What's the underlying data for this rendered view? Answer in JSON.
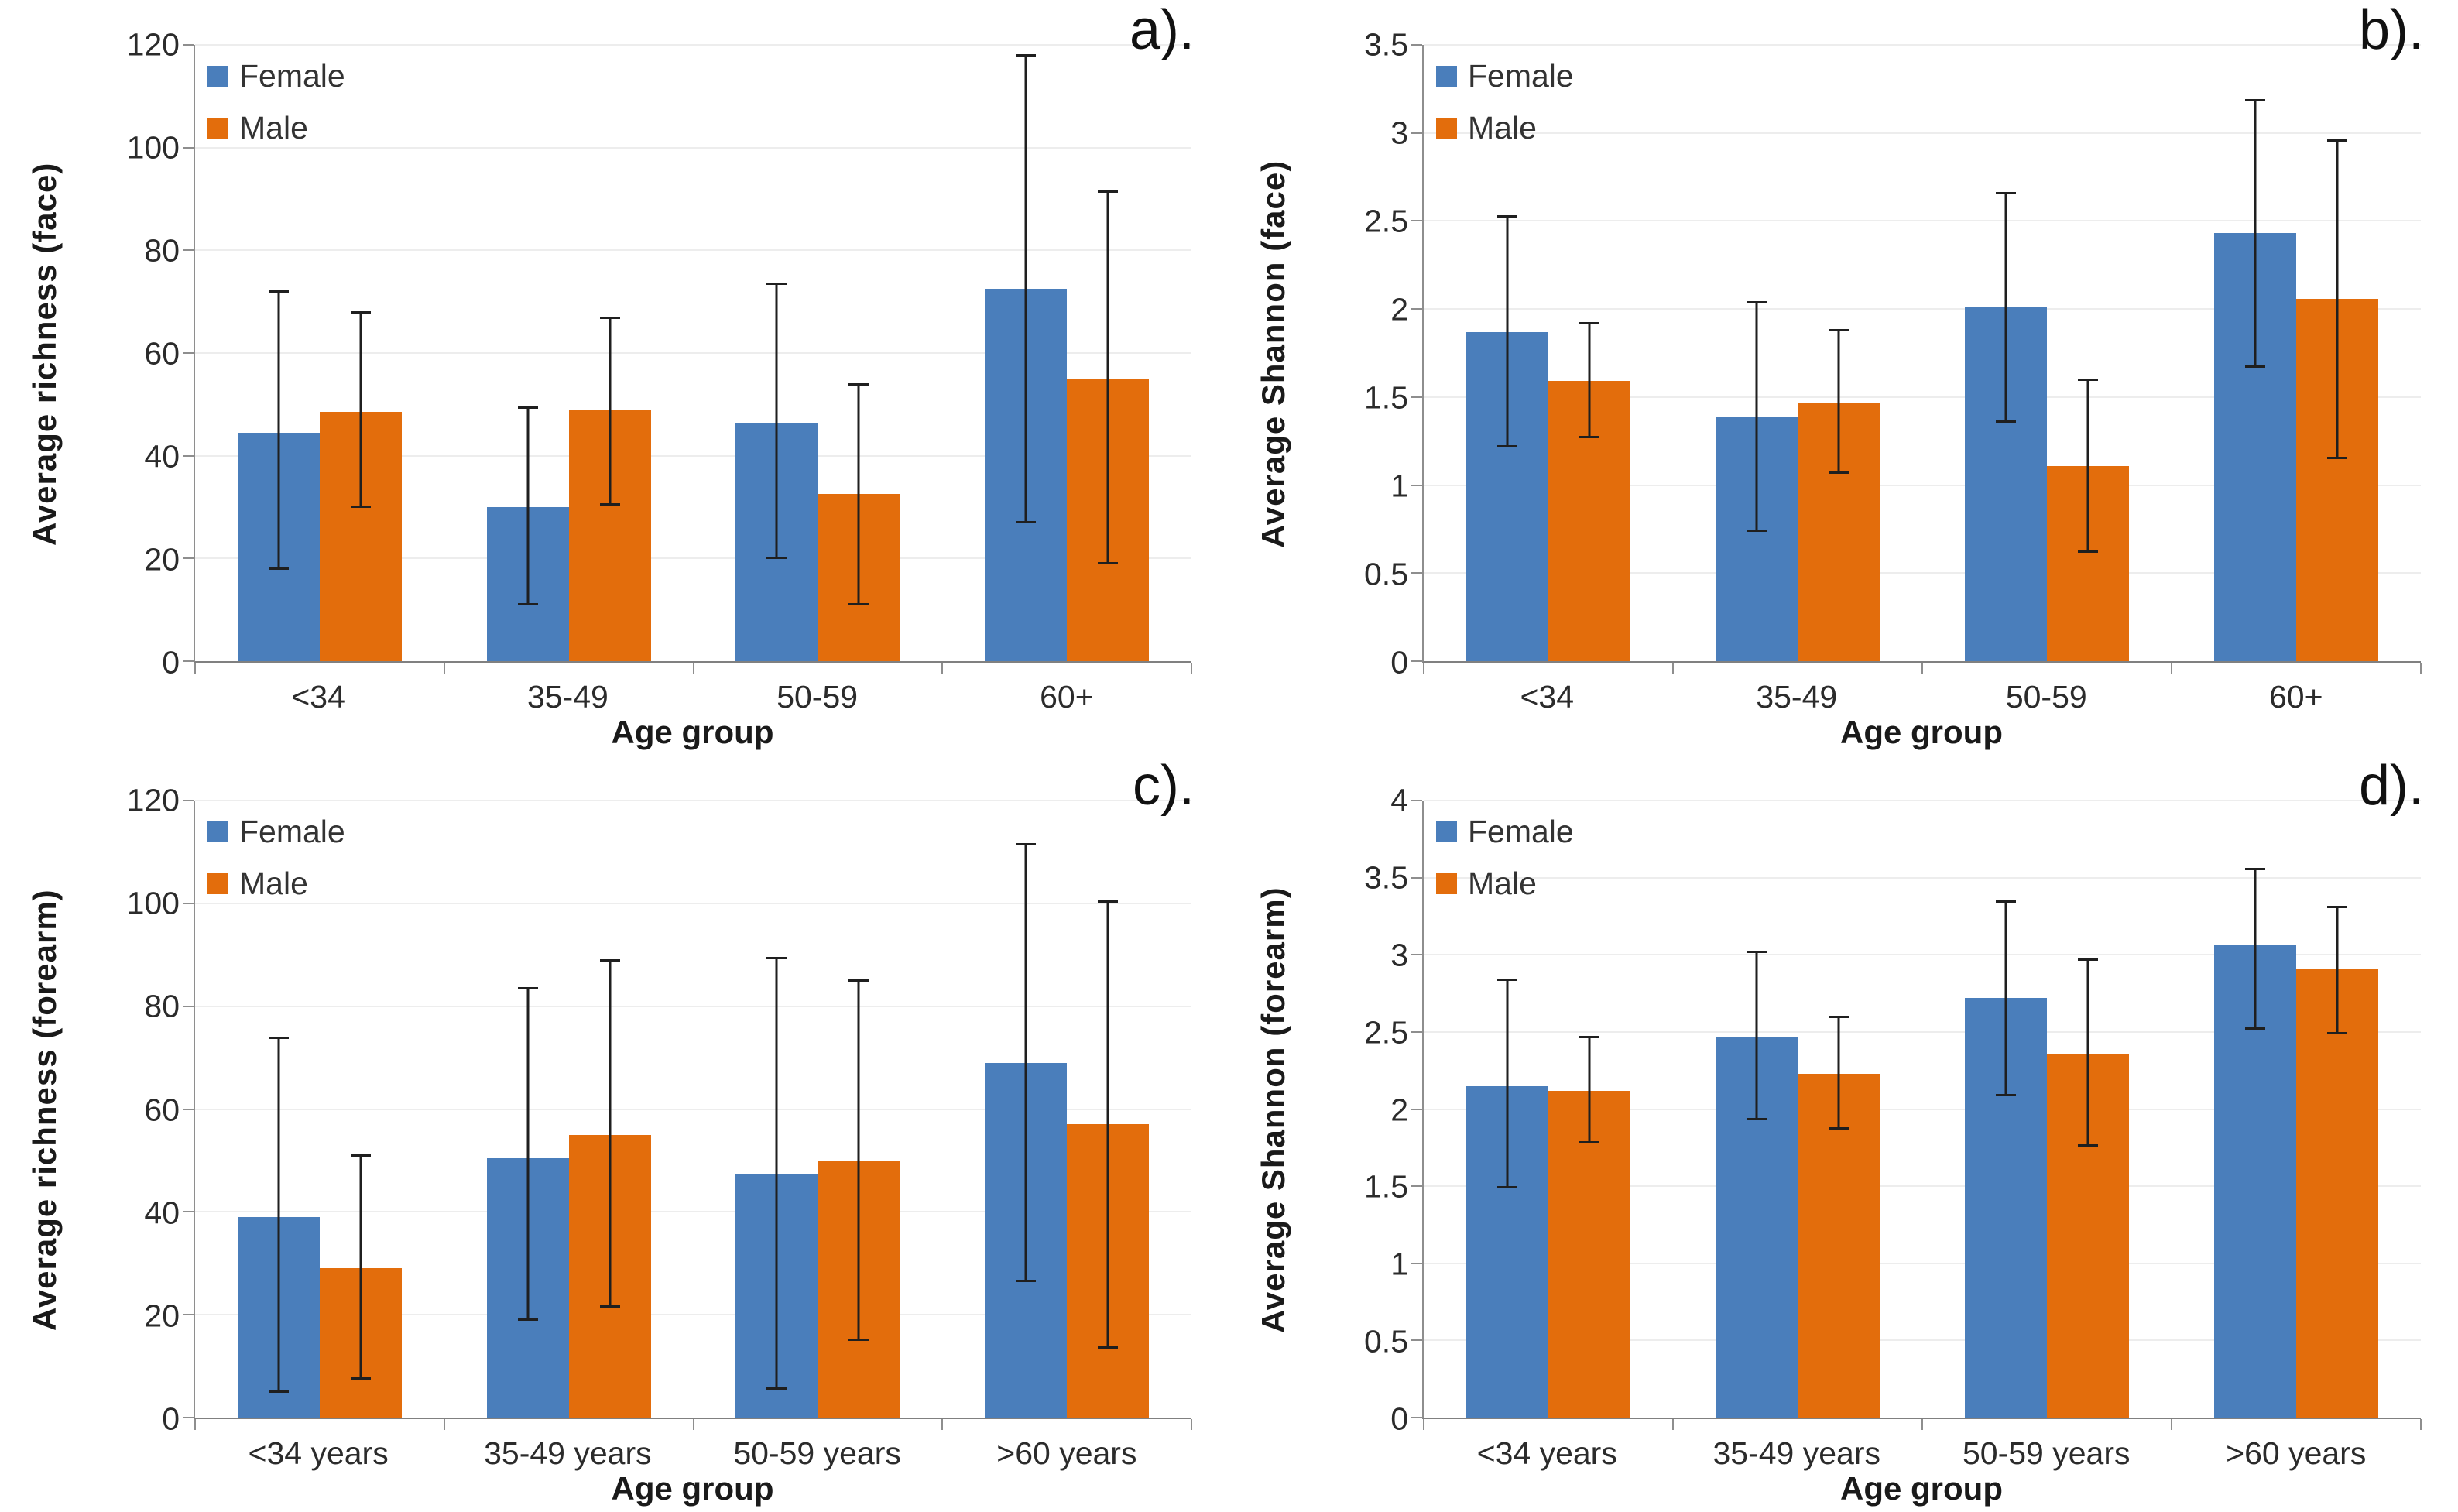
{
  "figure_background": "#ffffff",
  "colors": {
    "female": "#4A7EBB",
    "male": "#E36D0C",
    "error_bar": "#1f1f1f",
    "axis_line": "#8e8e8e",
    "baseline": "#808080",
    "gridline": "#ededed",
    "tick_text": "#2b2b2b",
    "title_text": "#1a1a1a"
  },
  "chart_data": [
    {
      "type": "bar",
      "panel_label": "a).",
      "ylabel": "Average richness (face)",
      "xlabel": "Age group",
      "categories": [
        "<34",
        "35-49",
        "50-59",
        "60+"
      ],
      "ylim": [
        0,
        120
      ],
      "yticks": [
        0,
        20,
        40,
        60,
        80,
        100,
        120
      ],
      "grid": true,
      "legend_position": "top-left",
      "series": [
        {
          "name": "Female",
          "color_key": "female",
          "values": [
            44.5,
            30,
            46.5,
            72.5
          ],
          "err_low": [
            18,
            11,
            20,
            27
          ],
          "err_high": [
            72,
            49.5,
            73.5,
            118
          ]
        },
        {
          "name": "Male",
          "color_key": "male",
          "values": [
            48.5,
            49,
            32.5,
            55
          ],
          "err_low": [
            30,
            30.5,
            11,
            19
          ],
          "err_high": [
            68,
            67,
            54,
            91.5
          ]
        }
      ]
    },
    {
      "type": "bar",
      "panel_label": "b).",
      "ylabel": "Average Shannon (face)",
      "xlabel": "Age group",
      "categories": [
        "<34",
        "35-49",
        "50-59",
        "60+"
      ],
      "ylim": [
        0,
        3.5
      ],
      "yticks": [
        0,
        0.5,
        1,
        1.5,
        2,
        2.5,
        3,
        3.5
      ],
      "grid": true,
      "legend_position": "top-left",
      "series": [
        {
          "name": "Female",
          "color_key": "female",
          "values": [
            1.87,
            1.39,
            2.01,
            2.43
          ],
          "err_low": [
            1.22,
            0.74,
            1.36,
            1.67
          ],
          "err_high": [
            2.53,
            2.04,
            2.66,
            3.19
          ]
        },
        {
          "name": "Male",
          "color_key": "male",
          "values": [
            1.59,
            1.47,
            1.11,
            2.06
          ],
          "err_low": [
            1.27,
            1.07,
            0.62,
            1.15
          ],
          "err_high": [
            1.92,
            1.88,
            1.6,
            2.96
          ]
        }
      ]
    },
    {
      "type": "bar",
      "panel_label": "c).",
      "ylabel": "Average richness (forearm)",
      "xlabel": "Age group",
      "categories": [
        "<34 years",
        "35-49 years",
        "50-59 years",
        ">60 years"
      ],
      "ylim": [
        0,
        120
      ],
      "yticks": [
        0,
        20,
        40,
        60,
        80,
        100,
        120
      ],
      "grid": true,
      "legend_position": "top-left",
      "series": [
        {
          "name": "Female",
          "color_key": "female",
          "values": [
            39,
            50.5,
            47.5,
            69
          ],
          "err_low": [
            5,
            19,
            5.5,
            26.5
          ],
          "err_high": [
            74,
            83.5,
            89.5,
            111.5
          ]
        },
        {
          "name": "Male",
          "color_key": "male",
          "values": [
            29,
            55,
            50,
            57
          ],
          "err_low": [
            7.5,
            21.5,
            15,
            13.5
          ],
          "err_high": [
            51,
            89,
            85,
            100.5
          ]
        }
      ]
    },
    {
      "type": "bar",
      "panel_label": "d).",
      "ylabel": "Average Shannon (forearm)",
      "xlabel": "Age group",
      "categories": [
        "<34 years",
        "35-49 years",
        "50-59 years",
        ">60 years"
      ],
      "ylim": [
        0,
        4
      ],
      "yticks": [
        0,
        0.5,
        1,
        1.5,
        2,
        2.5,
        3,
        3.5,
        4
      ],
      "grid": true,
      "legend_position": "top-left",
      "series": [
        {
          "name": "Female",
          "color_key": "female",
          "values": [
            2.15,
            2.47,
            2.72,
            3.06
          ],
          "err_low": [
            1.49,
            1.93,
            2.09,
            2.52
          ],
          "err_high": [
            2.84,
            3.02,
            3.35,
            3.56
          ]
        },
        {
          "name": "Male",
          "color_key": "male",
          "values": [
            2.12,
            2.23,
            2.36,
            2.91
          ],
          "err_low": [
            1.78,
            1.87,
            1.76,
            2.49
          ],
          "err_high": [
            2.47,
            2.6,
            2.97,
            3.31
          ]
        }
      ]
    }
  ]
}
